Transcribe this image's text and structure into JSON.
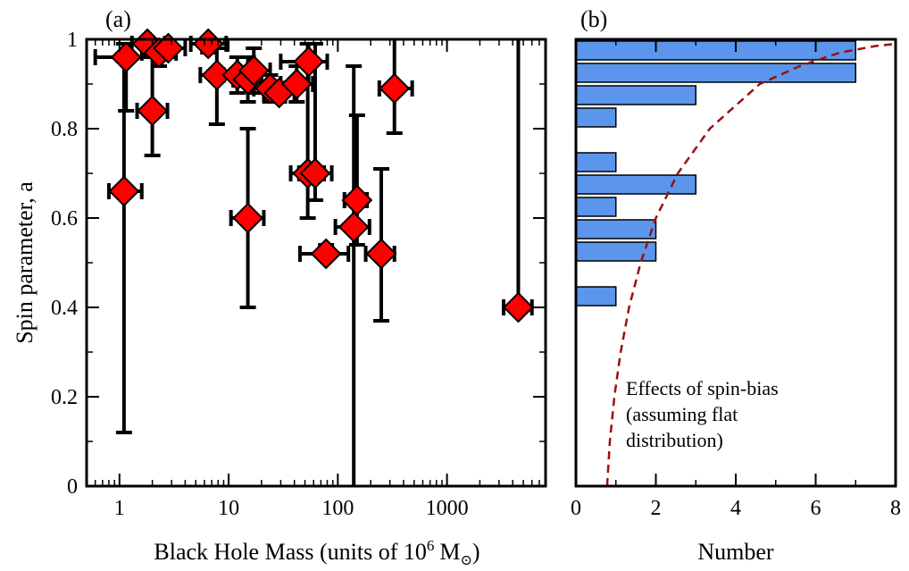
{
  "chart_data": [
    {
      "panel_label": "(a)",
      "type": "scatter",
      "xlabel_text": "Black Hole Mass (units of 10",
      "xlabel_exp": "6",
      "xlabel_unit": "M",
      "xlabel_close": ")",
      "ylabel": "Spin parameter, a",
      "xscale": "log",
      "xlim": [
        0.5,
        8000
      ],
      "ylim": [
        0,
        1
      ],
      "xtick_values": [
        1,
        10,
        100,
        1000
      ],
      "xtick_labels": [
        "1",
        "10",
        "100",
        "1000"
      ],
      "ytick_values": [
        0,
        0.2,
        0.4,
        0.6,
        0.8,
        1
      ],
      "ytick_labels": [
        "0",
        "0.2",
        "0.4",
        "0.6",
        "0.8",
        "1"
      ],
      "marker": "diamond",
      "marker_color": "#ff0000",
      "points": [
        {
          "x": 1.15,
          "y": 0.96,
          "xerr": [
            0.6,
            2.4
          ],
          "yerr": [
            0.84,
            0.99
          ]
        },
        {
          "x": 1.1,
          "y": 0.66,
          "xerr": [
            0.8,
            1.6
          ],
          "yerr": [
            0.12,
            0.99
          ]
        },
        {
          "x": 1.8,
          "y": 0.99,
          "xerr": [
            1.3,
            2.6
          ],
          "yerr": [
            0.98,
            1.0
          ]
        },
        {
          "x": 2.0,
          "y": 0.84,
          "xerr": [
            1.45,
            2.75
          ],
          "yerr": [
            0.74,
            0.99
          ]
        },
        {
          "x": 2.3,
          "y": 0.97,
          "xerr": [
            1.6,
            3.3
          ],
          "yerr": [
            0.94,
            1.0
          ]
        },
        {
          "x": 2.8,
          "y": 0.98,
          "xerr": [
            2.0,
            4.0
          ],
          "yerr": [
            0.96,
            1.0
          ]
        },
        {
          "x": 6.5,
          "y": 0.99,
          "xerr": [
            4.5,
            9.5
          ],
          "yerr": [
            0.97,
            1.0
          ]
        },
        {
          "x": 7.8,
          "y": 0.92,
          "xerr": [
            5.5,
            11
          ],
          "yerr": [
            0.81,
            0.98
          ]
        },
        {
          "x": 12,
          "y": 0.92,
          "xerr": [
            9,
            16
          ],
          "yerr": [
            0.88,
            0.96
          ]
        },
        {
          "x": 15,
          "y": 0.91,
          "xerr": [
            11,
            20
          ],
          "yerr": [
            0.86,
            0.96
          ]
        },
        {
          "x": 15,
          "y": 0.6,
          "xerr": [
            10.5,
            21
          ],
          "yerr": [
            0.4,
            0.8
          ]
        },
        {
          "x": 17,
          "y": 0.93,
          "xerr": [
            12,
            24
          ],
          "yerr": [
            0.88,
            0.98
          ]
        },
        {
          "x": 24,
          "y": 0.89,
          "xerr": [
            17,
            33
          ],
          "yerr": [
            0.86,
            0.92
          ]
        },
        {
          "x": 29,
          "y": 0.88,
          "xerr": [
            21,
            40
          ],
          "yerr": [
            0.86,
            0.9
          ]
        },
        {
          "x": 42,
          "y": 0.9,
          "xerr": [
            30,
            59
          ],
          "yerr": [
            0.86,
            0.94
          ]
        },
        {
          "x": 54,
          "y": 0.95,
          "xerr": [
            30,
            80
          ],
          "yerr": [
            0.9,
            0.99
          ]
        },
        {
          "x": 53,
          "y": 0.7,
          "xerr": [
            37,
            75
          ],
          "yerr": [
            0.6,
            0.99
          ]
        },
        {
          "x": 62,
          "y": 0.7,
          "xerr": [
            44,
            88
          ],
          "yerr": [
            0.64,
            0.99
          ]
        },
        {
          "x": 78,
          "y": 0.52,
          "xerr": [
            45,
            125
          ],
          "yerr": [
            0.51,
            0.54
          ]
        },
        {
          "x": 150,
          "y": 0.64,
          "xerr": [
            115,
            185
          ],
          "yerr": [
            0.54,
            0.83
          ]
        },
        {
          "x": 140,
          "y": 0.58,
          "xerr": [
            95,
            195
          ],
          "yerr": [
            0.0,
            0.94
          ]
        },
        {
          "x": 250,
          "y": 0.52,
          "xerr": [
            180,
            330
          ],
          "yerr": [
            0.37,
            0.71
          ]
        },
        {
          "x": 330,
          "y": 0.89,
          "xerr": [
            240,
            480
          ],
          "yerr": [
            0.79,
            1.0
          ]
        },
        {
          "x": 4500,
          "y": 0.4,
          "xerr": [
            3300,
            6000
          ],
          "yerr": [
            0.4,
            1.0
          ]
        }
      ]
    },
    {
      "panel_label": "(b)",
      "type": "bar",
      "orientation": "horizontal",
      "xlabel": "Number",
      "xlim": [
        0,
        8
      ],
      "ylim": [
        0,
        1
      ],
      "xtick_labels": [
        "0",
        "2",
        "4",
        "6",
        "8"
      ],
      "bar_color": "#5b96ec",
      "bars": [
        {
          "y_low": 0.95,
          "y_high": 1.0,
          "value": 7
        },
        {
          "y_low": 0.9,
          "y_high": 0.95,
          "value": 7
        },
        {
          "y_low": 0.85,
          "y_high": 0.9,
          "value": 3
        },
        {
          "y_low": 0.8,
          "y_high": 0.85,
          "value": 1
        },
        {
          "y_low": 0.7,
          "y_high": 0.75,
          "value": 1
        },
        {
          "y_low": 0.65,
          "y_high": 0.7,
          "value": 3
        },
        {
          "y_low": 0.6,
          "y_high": 0.65,
          "value": 1
        },
        {
          "y_low": 0.55,
          "y_high": 0.6,
          "value": 2
        },
        {
          "y_low": 0.5,
          "y_high": 0.55,
          "value": 2
        },
        {
          "y_low": 0.4,
          "y_high": 0.45,
          "value": 1
        }
      ],
      "curve": {
        "style": "dashed",
        "color": "#9b1010",
        "points": [
          {
            "x": 0.78,
            "y": 0.0
          },
          {
            "x": 0.85,
            "y": 0.1
          },
          {
            "x": 0.96,
            "y": 0.2
          },
          {
            "x": 1.12,
            "y": 0.3
          },
          {
            "x": 1.33,
            "y": 0.4
          },
          {
            "x": 1.62,
            "y": 0.5
          },
          {
            "x": 2.0,
            "y": 0.6
          },
          {
            "x": 2.55,
            "y": 0.7
          },
          {
            "x": 3.35,
            "y": 0.8
          },
          {
            "x": 4.6,
            "y": 0.9
          },
          {
            "x": 5.6,
            "y": 0.94
          },
          {
            "x": 6.6,
            "y": 0.97
          },
          {
            "x": 7.5,
            "y": 0.985
          },
          {
            "x": 8.0,
            "y": 0.99
          }
        ]
      },
      "annotation": [
        "Effects of spin-bias",
        "(assuming flat",
        "distribution)"
      ]
    }
  ]
}
